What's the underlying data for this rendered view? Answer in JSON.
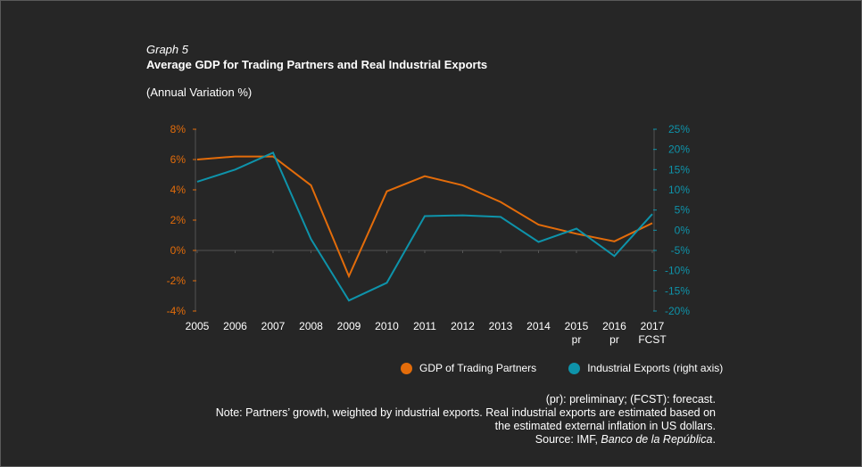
{
  "header": {
    "graph_number": "Graph 5",
    "title": "Average GDP for Trading Partners and Real Industrial Exports",
    "subtitle": "(Annual Variation %)"
  },
  "colors": {
    "background": "#262626",
    "gdp": "#e36c0a",
    "exports": "#0e93aa",
    "axis": "#444444",
    "text": "#ffffff"
  },
  "chart_data": {
    "type": "line",
    "title": "Average GDP for Trading Partners and Real Industrial Exports",
    "subtitle": "(Annual Variation %)",
    "categories": [
      "2005",
      "2006",
      "2007",
      "2008",
      "2009",
      "2010",
      "2011",
      "2012",
      "2013",
      "2014",
      "2015\npr",
      "2016\npr",
      "2017\nFCST"
    ],
    "category_labels": [
      [
        "2005",
        ""
      ],
      [
        "2006",
        ""
      ],
      [
        "2007",
        ""
      ],
      [
        "2008",
        ""
      ],
      [
        "2009",
        ""
      ],
      [
        "2010",
        ""
      ],
      [
        "2011",
        ""
      ],
      [
        "2012",
        ""
      ],
      [
        "2013",
        ""
      ],
      [
        "2014",
        ""
      ],
      [
        "2015",
        "pr"
      ],
      [
        "2016",
        "pr"
      ],
      [
        "2017",
        "FCST"
      ]
    ],
    "series": [
      {
        "name": "GDP of Trading Partners",
        "axis": "left",
        "color": "#e36c0a",
        "values": [
          6.0,
          6.2,
          6.2,
          4.3,
          -1.7,
          3.9,
          4.9,
          4.3,
          3.2,
          1.7,
          1.1,
          0.6,
          1.8
        ]
      },
      {
        "name": "Industrial Exports (right axis)",
        "axis": "right",
        "color": "#0e93aa",
        "values": [
          12.0,
          15.0,
          19.2,
          -2.2,
          -17.4,
          -13.0,
          3.5,
          3.7,
          3.3,
          -2.9,
          0.4,
          -6.4,
          4.0
        ]
      }
    ],
    "left_axis": {
      "ylim": [
        -4,
        8
      ],
      "ticks": [
        8,
        6,
        4,
        2,
        0,
        -2,
        -4
      ],
      "tick_labels": [
        "8%",
        "6%",
        "4%",
        "2%",
        "0%",
        "-2%",
        "-4%"
      ]
    },
    "right_axis": {
      "ylim": [
        -20,
        25
      ],
      "ticks": [
        25,
        20,
        15,
        10,
        5,
        0,
        -5,
        -10,
        -15,
        -20
      ],
      "tick_labels": [
        "25%",
        "20%",
        "15%",
        "10%",
        "5%",
        "0%",
        "-5%",
        "-10%",
        "-15%",
        "-20%"
      ]
    },
    "xlabel": "",
    "ylabel": "",
    "grid": false,
    "legend_position": "bottom"
  },
  "legend": [
    {
      "label": "GDP of Trading Partners",
      "color": "#e36c0a"
    },
    {
      "label": "Industrial Exports (right axis)",
      "color": "#0e93aa"
    }
  ],
  "notes": {
    "line1": "(pr): preliminary; (FCST): forecast.",
    "line2": "Note: Partners’ growth, weighted by industrial exports. Real industrial exports are estimated based on",
    "line3": "the estimated external inflation in US dollars.",
    "source_prefix": "Source: IMF, ",
    "source_italic": "Banco de la República",
    "source_suffix": "."
  }
}
